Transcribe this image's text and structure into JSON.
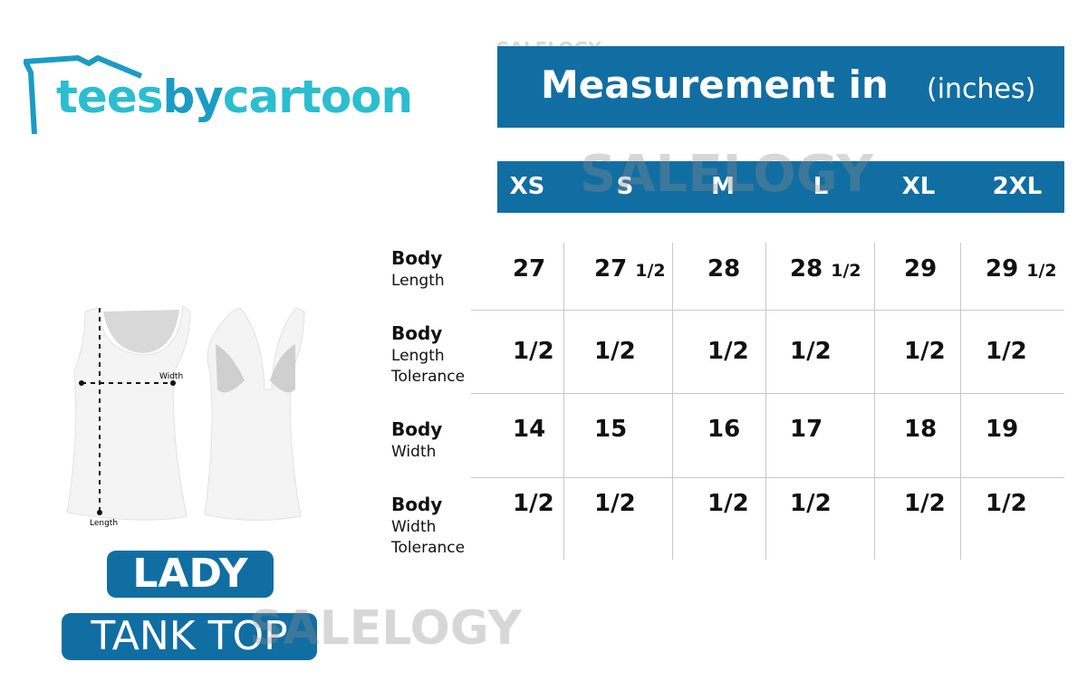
{
  "logo": {
    "text_part1": "tees",
    "text_part2": "by",
    "text_part3": "cartoon",
    "brand_color": "#2bbdd0"
  },
  "header": {
    "title": "Measurement in",
    "unit": "(inches)",
    "bar_color": "#116ea2"
  },
  "sizes": [
    "XS",
    "S",
    "M",
    "L",
    "XL",
    "2XL"
  ],
  "rows": [
    {
      "label_bold": "Body",
      "label_rest": [
        "Length"
      ],
      "values": [
        [
          "27",
          ""
        ],
        [
          "27",
          "1/2"
        ],
        [
          "28",
          ""
        ],
        [
          "28",
          "1/2"
        ],
        [
          "29",
          ""
        ],
        [
          "29",
          "1/2"
        ]
      ]
    },
    {
      "label_bold": "Body",
      "label_rest": [
        "Length",
        "Tolerance"
      ],
      "values": [
        [
          "1/2",
          ""
        ],
        [
          "1/2",
          ""
        ],
        [
          "1/2",
          ""
        ],
        [
          "1/2",
          ""
        ],
        [
          "1/2",
          ""
        ],
        [
          "1/2",
          ""
        ]
      ]
    },
    {
      "label_bold": "Body",
      "label_rest": [
        "Width"
      ],
      "values": [
        [
          "14",
          ""
        ],
        [
          "15",
          ""
        ],
        [
          "16",
          ""
        ],
        [
          "17",
          ""
        ],
        [
          "18",
          ""
        ],
        [
          "19",
          ""
        ]
      ]
    },
    {
      "label_bold": "Body",
      "label_rest": [
        "Width",
        "Tolerance"
      ],
      "values": [
        [
          "1/2",
          ""
        ],
        [
          "1/2",
          ""
        ],
        [
          "1/2",
          ""
        ],
        [
          "1/2",
          ""
        ],
        [
          "1/2",
          ""
        ],
        [
          "1/2",
          ""
        ]
      ]
    }
  ],
  "diagram": {
    "width_label": "Width",
    "length_label": "Length"
  },
  "product": {
    "line1": "LADY",
    "line2": "TANK TOP"
  },
  "watermarks": [
    "SALELOGY",
    "SALELOGY",
    "SALELOGY"
  ]
}
